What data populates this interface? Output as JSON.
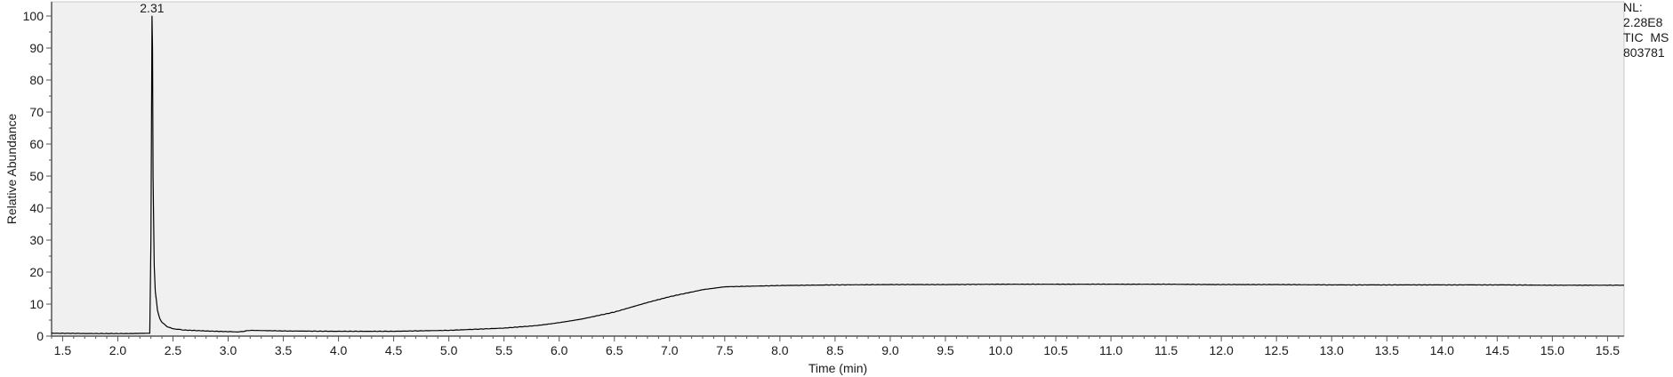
{
  "chart_data": {
    "type": "line",
    "title": "",
    "xlabel": "Time (min)",
    "ylabel": "Relative Abundance",
    "xlim": [
      1.4,
      15.65
    ],
    "ylim": [
      0,
      100
    ],
    "x_ticks_major": [
      1.5,
      2.0,
      2.5,
      3.0,
      3.5,
      4.0,
      4.5,
      5.0,
      5.5,
      6.0,
      6.5,
      7.0,
      7.5,
      8.0,
      8.5,
      9.0,
      9.5,
      10.0,
      10.5,
      11.0,
      11.5,
      12.0,
      12.5,
      13.0,
      13.5,
      14.0,
      14.5,
      15.0,
      15.5
    ],
    "x_tick_labels": [
      "1.5",
      "2.0",
      "2.5",
      "3.0",
      "3.5",
      "4.0",
      "4.5",
      "5.0",
      "5.5",
      "6.0",
      "6.5",
      "7.0",
      "7.5",
      "8.0",
      "8.5",
      "9.0",
      "9.5",
      "10.0",
      "10.5",
      "11.0",
      "11.5",
      "12.0",
      "12.5",
      "13.0",
      "13.5",
      "14.0",
      "14.5",
      "15.0",
      "15.5"
    ],
    "y_ticks": [
      0,
      10,
      20,
      30,
      40,
      50,
      60,
      70,
      80,
      90,
      100
    ],
    "y_tick_labels": [
      "0",
      "10",
      "20",
      "30",
      "40",
      "50",
      "60",
      "70",
      "80",
      "90",
      "100"
    ],
    "grid": false,
    "legend": "none",
    "series": [
      {
        "x": [
          1.4,
          1.8,
          2.1,
          2.29,
          2.3,
          2.31,
          2.315,
          2.32,
          2.33,
          2.34,
          2.36,
          2.38,
          2.4,
          2.45,
          2.5,
          2.6,
          2.8,
          3.0,
          3.1,
          3.2,
          3.5,
          4.0,
          4.5,
          5.0,
          5.5,
          5.8,
          6.0,
          6.2,
          6.5,
          6.8,
          7.0,
          7.3,
          7.5,
          8.0,
          8.5,
          9.0,
          9.5,
          10.0,
          10.5,
          11.0,
          11.5,
          12.0,
          12.5,
          13.0,
          13.5,
          14.0,
          14.5,
          15.0,
          15.5,
          15.65
        ],
        "y": [
          0.9,
          0.8,
          0.8,
          0.9,
          30,
          100,
          90,
          50,
          22,
          14,
          8,
          5.5,
          4.3,
          2.9,
          2.3,
          1.9,
          1.6,
          1.4,
          1.3,
          1.8,
          1.6,
          1.5,
          1.5,
          1.8,
          2.5,
          3.3,
          4.2,
          5.3,
          7.5,
          10.5,
          12.3,
          14.5,
          15.4,
          15.8,
          16.0,
          16.1,
          16.1,
          16.2,
          16.2,
          16.2,
          16.2,
          16.1,
          16.1,
          16.0,
          16.0,
          16.0,
          16.0,
          15.9,
          15.9,
          15.9
        ]
      }
    ],
    "annotations": [
      {
        "x": 2.31,
        "y": 100,
        "text": "2.31"
      }
    ]
  },
  "info": {
    "nl_label": "NL:",
    "nl_value": "2.28E8",
    "scan_filter": "TIC  MS",
    "sample_id": "803781"
  },
  "colors": {
    "plot_background": "#f0f0f0",
    "trace": "#000000",
    "axis": "#555555"
  }
}
